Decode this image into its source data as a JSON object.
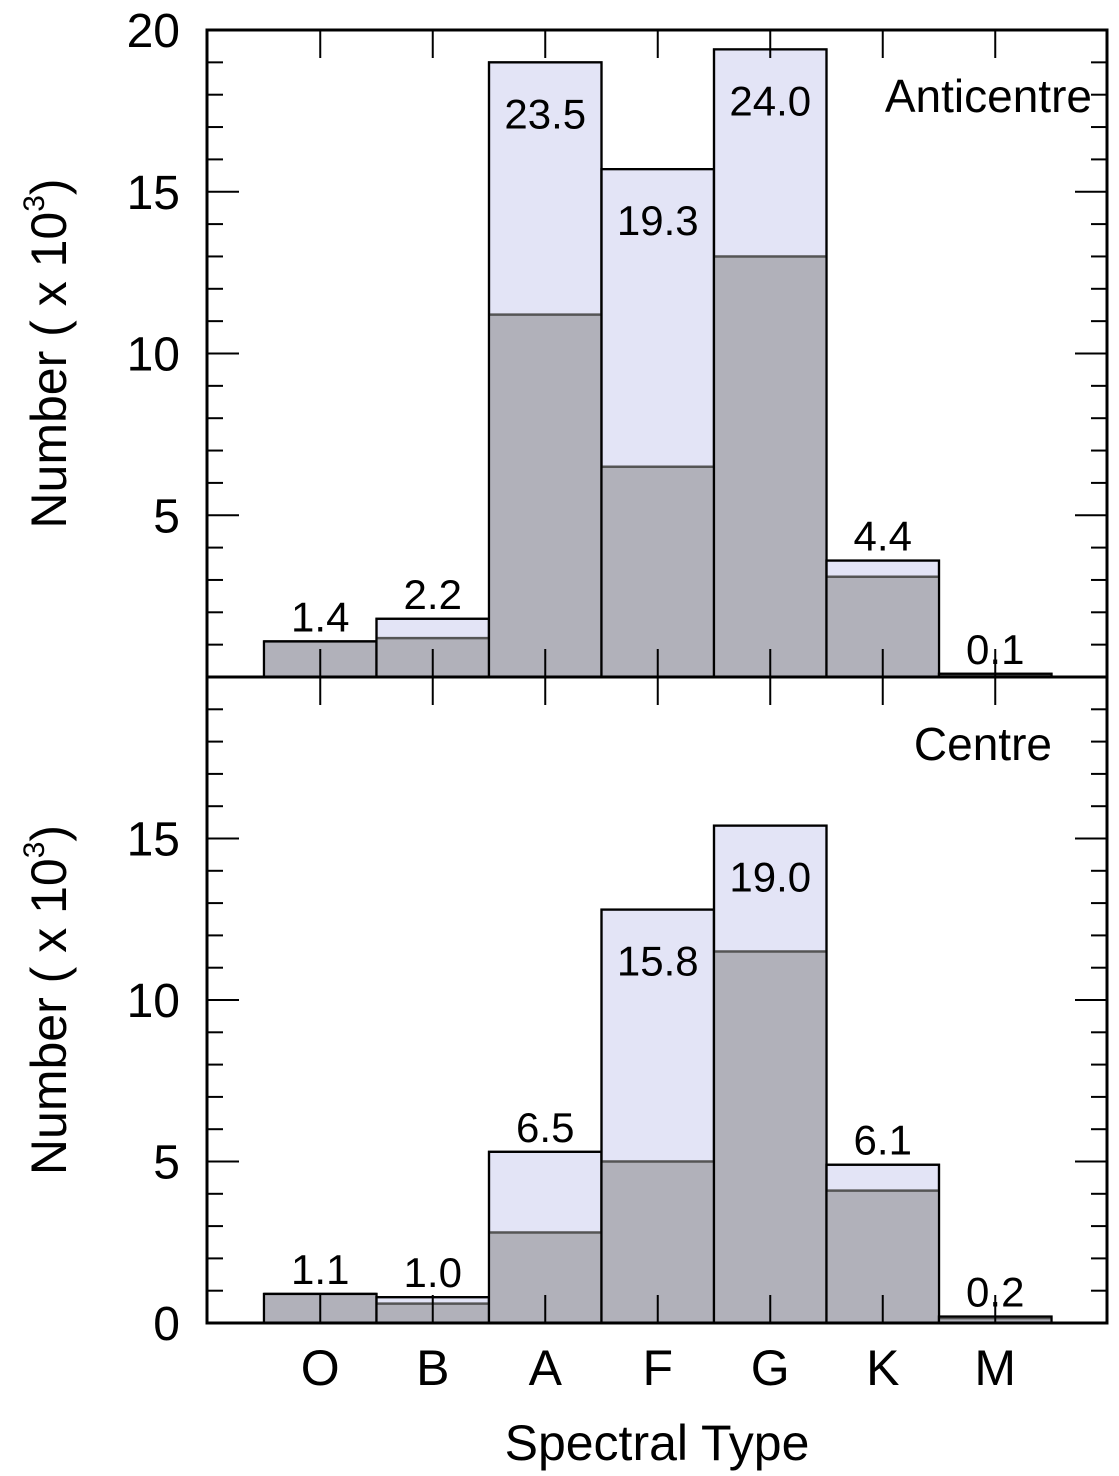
{
  "chart_data": [
    {
      "panel": "top",
      "type": "bar",
      "stacked": true,
      "title": "Anticentre",
      "ylabel": "Number  ( x 10",
      "ylabel_sup": "3",
      "ylabel_close": ")",
      "ylim": [
        0,
        20
      ],
      "yticks": [
        5,
        10,
        15,
        20
      ],
      "categories": [
        "O",
        "B",
        "A",
        "F",
        "G",
        "K",
        "M"
      ],
      "dark_values": [
        1.1,
        1.2,
        11.2,
        6.5,
        13.0,
        3.1,
        0.05
      ],
      "total_values": [
        1.1,
        1.8,
        19.0,
        15.7,
        19.4,
        3.6,
        0.1
      ],
      "labels": [
        "1.4",
        "2.2",
        "23.5",
        "19.3",
        "24.0",
        "4.4",
        "0.1"
      ],
      "label_inside": [
        false,
        false,
        true,
        true,
        true,
        false,
        false
      ],
      "colors": {
        "dark": "#b1b1ba",
        "light": "#e3e4f6"
      }
    },
    {
      "panel": "bottom",
      "type": "bar",
      "stacked": true,
      "title": "Centre",
      "ylabel": "Number ( x 10",
      "ylabel_sup": "3",
      "ylabel_close": ")",
      "ylim": [
        0,
        20
      ],
      "yticks": [
        0,
        5,
        10,
        15
      ],
      "categories": [
        "O",
        "B",
        "A",
        "F",
        "G",
        "K",
        "M"
      ],
      "dark_values": [
        0.9,
        0.6,
        2.8,
        5.0,
        11.5,
        4.1,
        0.15
      ],
      "total_values": [
        0.9,
        0.8,
        5.3,
        12.8,
        15.4,
        4.9,
        0.2
      ],
      "labels": [
        "1.1",
        "1.0",
        "6.5",
        "15.8",
        "19.0",
        "6.1",
        "0.2"
      ],
      "label_inside": [
        false,
        false,
        false,
        true,
        true,
        false,
        false
      ],
      "colors": {
        "dark": "#b1b1ba",
        "light": "#e3e4f6"
      }
    }
  ],
  "xlabel": "Spectral Type"
}
